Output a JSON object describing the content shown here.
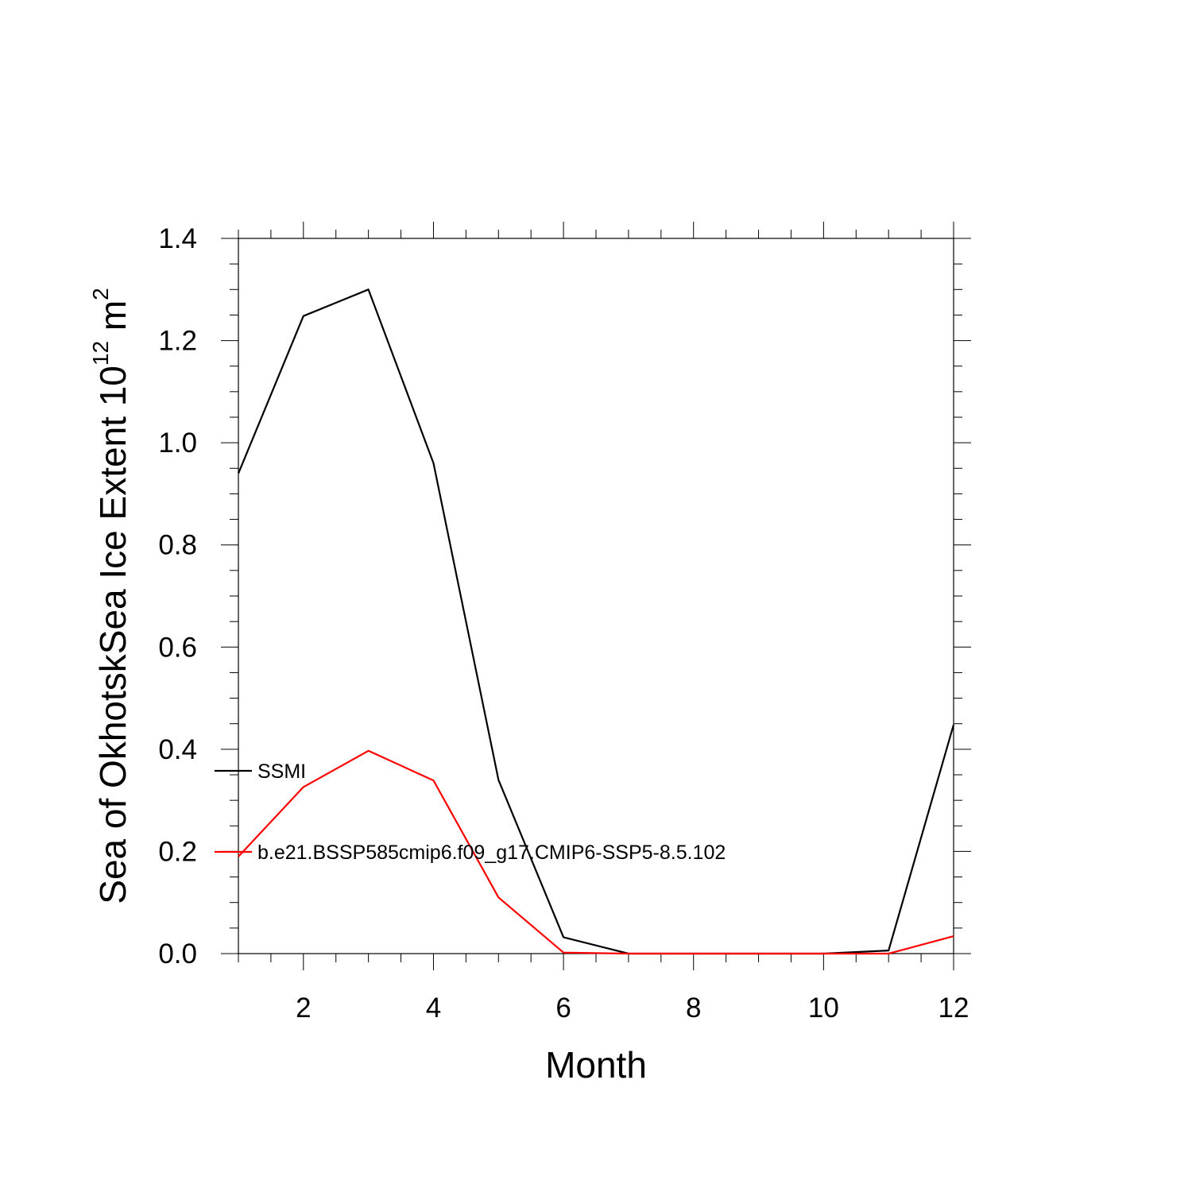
{
  "chart_data": {
    "type": "line",
    "xlabel": "Month",
    "ylabel": {
      "text": "Sea of OkhotskSea Ice Extent 10",
      "superscript": "12",
      "unit": " m",
      "unit_superscript": "2"
    },
    "xlim": [
      1,
      12
    ],
    "ylim": [
      0,
      1.4
    ],
    "x_ticks": [
      2,
      4,
      6,
      8,
      10,
      12
    ],
    "x_tick_labels": [
      "2",
      "4",
      "6",
      "8",
      "10",
      "12"
    ],
    "y_ticks": [
      0,
      0.2,
      0.4,
      0.6,
      0.8,
      1.0,
      1.2,
      1.4
    ],
    "y_tick_labels": [
      "0.0",
      "0.2",
      "0.4",
      "0.6",
      "0.8",
      "1.0",
      "1.2",
      "1.4"
    ],
    "grid": false,
    "legend_placement": "lower-left, inside",
    "x": [
      1,
      2,
      3,
      4,
      5,
      6,
      7,
      8,
      9,
      10,
      11,
      12
    ],
    "series": [
      {
        "name": "SSMI",
        "color": "#000000",
        "values": [
          0.94,
          1.248,
          1.3,
          0.96,
          0.34,
          0.032,
          0.0,
          0.0,
          0.0,
          0.0,
          0.006,
          0.448
        ]
      },
      {
        "name": "b.e21.BSSP585cmip6.f09_g17.CMIP6-SSP5-8.5.102",
        "color": "#ff0000",
        "values": [
          0.19,
          0.326,
          0.397,
          0.339,
          0.11,
          0.002,
          0.0,
          0.0,
          0.0,
          0.0,
          0.0,
          0.034
        ]
      }
    ]
  }
}
